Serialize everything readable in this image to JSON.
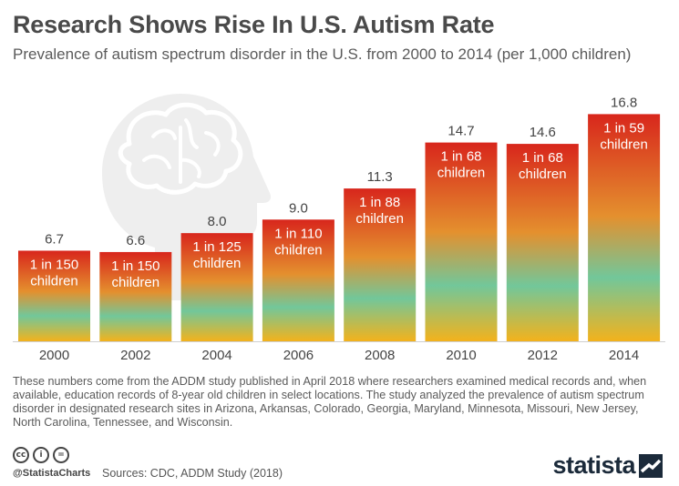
{
  "header": {
    "title": "Research Shows Rise In U.S. Autism Rate",
    "subtitle": "Prevalence of autism spectrum disorder in the U.S. from 2000 to 2014 (per 1,000 children)"
  },
  "chart_data": {
    "type": "bar",
    "categories": [
      "2000",
      "2002",
      "2004",
      "2006",
      "2008",
      "2010",
      "2012",
      "2014"
    ],
    "values": [
      6.7,
      6.6,
      8.0,
      9.0,
      11.3,
      14.7,
      14.6,
      16.8
    ],
    "value_labels": [
      "6.7",
      "6.6",
      "8.0",
      "9.0",
      "11.3",
      "14.7",
      "14.6",
      "16.8"
    ],
    "bar_annotations": [
      [
        "1 in 150",
        "children"
      ],
      [
        "1 in 150",
        "children"
      ],
      [
        "1 in 125",
        "children"
      ],
      [
        "1 in 110",
        "children"
      ],
      [
        "1 in 88",
        "children"
      ],
      [
        "1 in 68",
        "children"
      ],
      [
        "1 in 68",
        "children"
      ],
      [
        "1 in 59",
        "children"
      ]
    ],
    "ylim": [
      0,
      17.5
    ],
    "grid": false,
    "gradient_colors": {
      "top": "#d8261c",
      "middle": "#72c79a",
      "bottom": "#f3b21c"
    },
    "decoration": "head-brain-icon"
  },
  "note": "These numbers come from the ADDM study published in April 2018 where researchers examined medical records and, when available, education records of 8-year old children in select locations. The study analyzed the prevalence of autism spectrum disorder in designated research sites in Arizona, Arkansas, Colorado, Georgia, Maryland, Minnesota, Missouri, New Jersey, North Carolina, Tennessee, and Wisconsin.",
  "footer": {
    "license_icons": [
      "cc-icon",
      "by-icon",
      "nd-icon"
    ],
    "license_glyphs": [
      "cc",
      "i",
      "="
    ],
    "handle": "@StatistaCharts",
    "sources": "Sources: CDC, ADDM Study (2018)",
    "brand": "statista"
  }
}
